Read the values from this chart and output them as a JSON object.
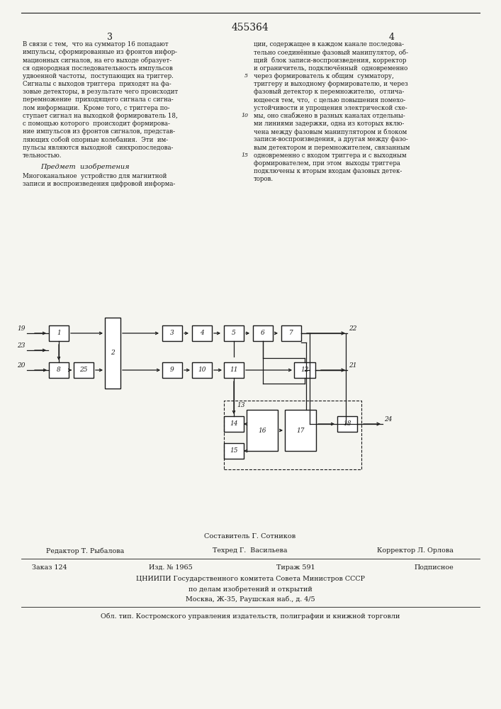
{
  "patent_number": "455364",
  "page_numbers": [
    "3",
    "4"
  ],
  "text_col1_lines": [
    "В связи с тем,  что на сумматор 16 попадают",
    "импульсы, сформированные из фронтов инфор-",
    "мационных сигналов, на его выходе образует-",
    "ся однородная последовательность импульсов",
    "удвоенной частоты,  поступающих на триггер.",
    "Сигналы с выходов триггера  приходят на фа-",
    "зовые детекторы, в результате чего происходит",
    "перемножение  приходящего сигнала с сигна-",
    "лом информации.  Кроме того, с триггера по-",
    "ступает сигнал на выходкой формирователь 18,",
    "с помощью которого  происходит формирова-",
    "ние импульсов из фронтов сигналов, представ-",
    "ляющих собой опорные колебания.  Эти  им-",
    "пульсы являются выходной  синхропоследова-",
    "тельностью."
  ],
  "predmet_heading": "Предмет  изобретения",
  "text_predmet_lines": [
    "Многоканальное  устройство для магнитной",
    "записи и воспроизведения цифровой информа-"
  ],
  "text_col2_lines": [
    "ции, содержащее в каждом канале последова-",
    "тельно соединённые фазовый манипулятор, об-",
    "щий  блок записи-воспроизведения, корректор",
    "и ограничитель, подключённый  одновременно",
    "через формирователь к общим  сумматору,",
    "триггеру и выходному формирователю, и через",
    "фазовый детектор к перемножителю,  отлича-",
    "ющееся тем, что,  с целью повышения помехо-",
    "устойчивости и упрощения электрической схе-",
    "мы, оно снабжено в разных каналах отдельны-",
    "ми линиями задержки, одна из которых вклю-",
    "чена между фазовым манипулятором и блоком",
    "записи-воспроизведения, а другая между фазо-",
    "вым детектором и перемножителем, связанным",
    "одновременно с входом триггера и с выходным",
    "формирователем, при этом  выходы триггера",
    "подключены к вторым входам фазовых детек-",
    "торов."
  ],
  "line_numbers_col2": [
    5,
    10,
    15
  ],
  "footer_sostavitel": "Составитель Г. Сотников",
  "footer_redaktor": "Редактор Т. Рыбалова",
  "footer_tehred": "Техред Г.  Васильева",
  "footer_korrektor": "Корректор Л. Орлова",
  "footer_zakaz": "Заказ 124",
  "footer_izd": "Изд. № 1965",
  "footer_tirazh": "Тираж 591",
  "footer_podpisnoe": "Подписное",
  "footer_cniipii": "ЦНИИПИ Государственного комитета Совета Министров СССР",
  "footer_dela": "по делам изобретений и открытий",
  "footer_moskva": "Москва, Ж-35, Раушская наб., д. 4/5",
  "footer_obl": "Обл. тип. Костромского управления издательств, полиграфии и книжной торговли",
  "bg_color": "#f5f5f0"
}
